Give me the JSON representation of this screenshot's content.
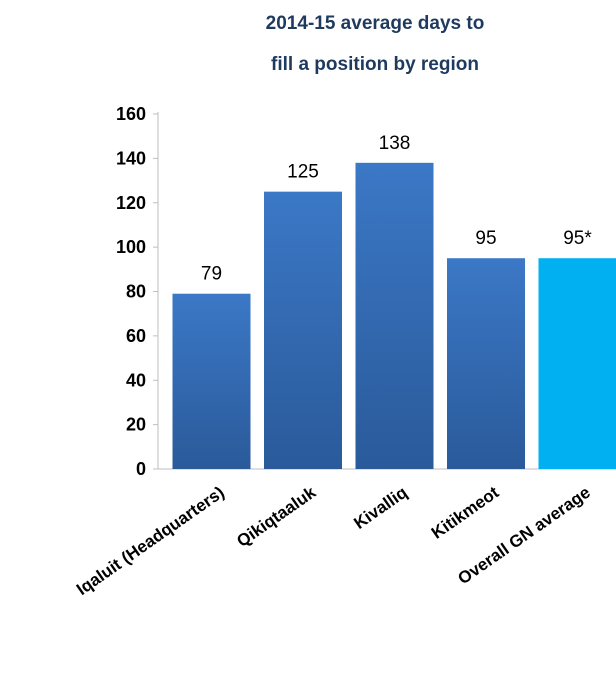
{
  "chart_data": {
    "type": "bar",
    "title_lines": [
      "2014-15 average days to",
      "fill a position by region"
    ],
    "categories": [
      "Iqaluit (Headquarters)",
      "Qikiqtaaluk",
      "Kivalliq",
      "Kitikmeot",
      "Overall GN average"
    ],
    "values": [
      79,
      125,
      138,
      95,
      95
    ],
    "data_labels": [
      "79",
      "125",
      "138",
      "95",
      "95*"
    ],
    "yticks": [
      "0",
      "20",
      "40",
      "60",
      "80",
      "100",
      "120",
      "140",
      "160"
    ],
    "ylim": [
      0,
      160
    ],
    "grid": false,
    "legend": "none",
    "colors": {
      "bar_top": "#3b78c6",
      "bar_bottom": "#2a5a9a",
      "highlight_bar": "#00b0f0",
      "axis": "#bfbfbf",
      "title": "#1f3a5f"
    }
  }
}
